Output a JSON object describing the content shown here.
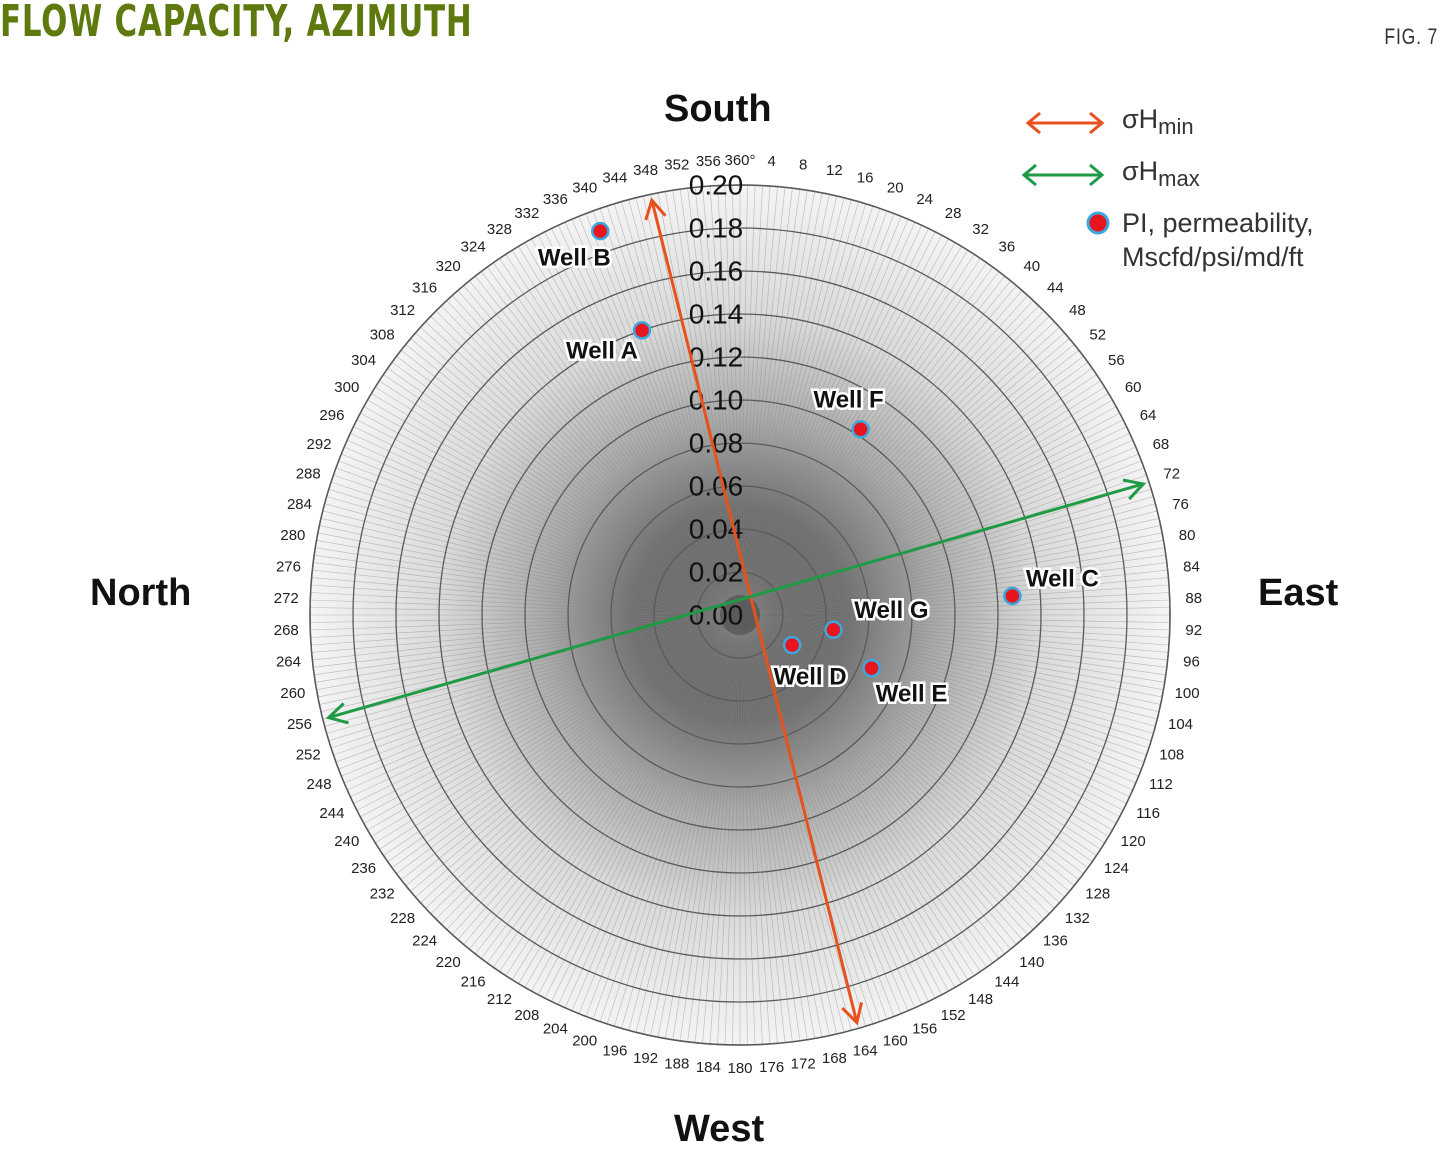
{
  "header": {
    "title": "FLOW CAPACITY, AZIMUTH",
    "figure_label": "FIG. 7"
  },
  "compass": {
    "top": "South",
    "bottom": "West",
    "left": "North",
    "right": "East"
  },
  "legend": {
    "items": [
      {
        "symbol": "double-arrow",
        "color": "#e8501e",
        "label_main": "σH",
        "label_sub": "min"
      },
      {
        "symbol": "double-arrow",
        "color": "#1f9a45",
        "label_main": "σH",
        "label_sub": "max"
      },
      {
        "symbol": "dot",
        "color": "#e8141e",
        "ring_color": "#3aa8dc",
        "label_line1": "PI, permeability,",
        "label_line2": "Mscfd/psi/md/ft"
      }
    ]
  },
  "colors": {
    "title": "#5e7a0f",
    "sigma_h_min": "#e8501e",
    "sigma_h_max": "#1f9a45",
    "well_fill": "#e8141e",
    "well_ring": "#3aa8dc",
    "grid": "#555555"
  },
  "chart_data": {
    "type": "scatter",
    "subtype": "polar",
    "title": "Flow capacity, azimuth",
    "radial_axis": {
      "label": "PI, permeability, Mscfd/psi/md/ft",
      "range": [
        0,
        0.2
      ],
      "ticks": [
        "0.00",
        "0.02",
        "0.04",
        "0.06",
        "0.08",
        "0.10",
        "0.12",
        "0.14",
        "0.16",
        "0.18",
        "0.20"
      ]
    },
    "angular_axis": {
      "unit": "degrees",
      "zero_direction": "top",
      "direction": "clockwise",
      "tick_step": 4,
      "ticks": [
        "360°",
        "4",
        "8",
        "12",
        "16",
        "20",
        "24",
        "28",
        "32",
        "36",
        "40",
        "44",
        "48",
        "52",
        "56",
        "60",
        "64",
        "68",
        "72",
        "76",
        "80",
        "84",
        "88",
        "92",
        "96",
        "100",
        "104",
        "108",
        "112",
        "116",
        "120",
        "124",
        "128",
        "132",
        "136",
        "140",
        "144",
        "148",
        "152",
        "156",
        "160",
        "164",
        "168",
        "172",
        "176",
        "180",
        "184",
        "188",
        "192",
        "196",
        "200",
        "204",
        "208",
        "212",
        "216",
        "220",
        "224",
        "228",
        "232",
        "236",
        "240",
        "244",
        "248",
        "252",
        "256",
        "260",
        "264",
        "268",
        "272",
        "276",
        "280",
        "284",
        "288",
        "292",
        "296",
        "300",
        "304",
        "308",
        "312",
        "316",
        "320",
        "324",
        "328",
        "332",
        "336",
        "340",
        "344",
        "348",
        "352",
        "356"
      ],
      "cardinal_labels": {
        "0": "South",
        "90": "East",
        "180": "West",
        "270": "North"
      }
    },
    "series": [
      {
        "name": "PI, permeability, Mscfd/psi/md/ft",
        "points": [
          {
            "label": "Well A",
            "azimuth": 341,
            "value": 0.14
          },
          {
            "label": "Well B",
            "azimuth": 340,
            "value": 0.19
          },
          {
            "label": "Well C",
            "azimuth": 86,
            "value": 0.127
          },
          {
            "label": "Well D",
            "azimuth": 120,
            "value": 0.028
          },
          {
            "label": "Well E",
            "azimuth": 112,
            "value": 0.066
          },
          {
            "label": "Well F",
            "azimuth": 33,
            "value": 0.103
          },
          {
            "label": "Well G",
            "azimuth": 99,
            "value": 0.044
          }
        ]
      }
    ],
    "stress_directions": [
      {
        "name": "σHmin",
        "azimuths": [
          348,
          164
        ],
        "color": "#e8501e"
      },
      {
        "name": "σHmax",
        "azimuths": [
          72,
          256
        ],
        "color": "#1f9a45"
      }
    ],
    "legend_position": "top-right"
  }
}
